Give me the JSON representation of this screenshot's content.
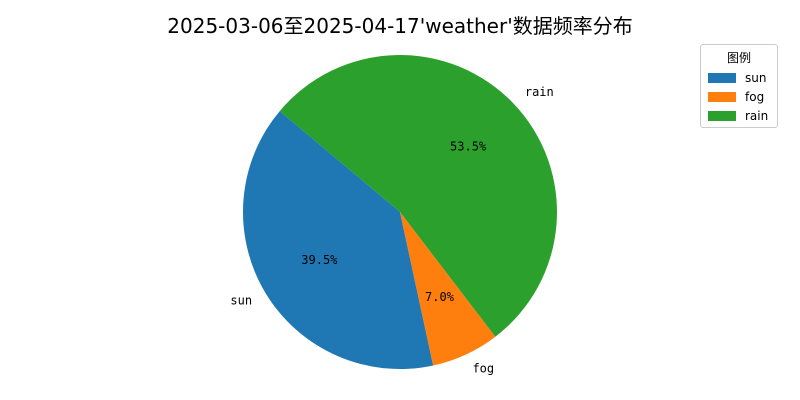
{
  "chart_data": {
    "type": "pie",
    "title": "2025-03-06至2025-04-17'weather'数据频率分布",
    "slices": [
      {
        "label": "sun",
        "value": 39.5,
        "pct_label": "39.5%",
        "color": "#1f77b4"
      },
      {
        "label": "fog",
        "value": 7.0,
        "pct_label": "7.0%",
        "color": "#ff7f0e"
      },
      {
        "label": "rain",
        "value": 53.5,
        "pct_label": "53.5%",
        "color": "#2ca02c"
      }
    ],
    "start_angle_deg": 140,
    "direction": "counterclockwise",
    "legend": {
      "title": "图例",
      "placement": "top-right"
    }
  }
}
